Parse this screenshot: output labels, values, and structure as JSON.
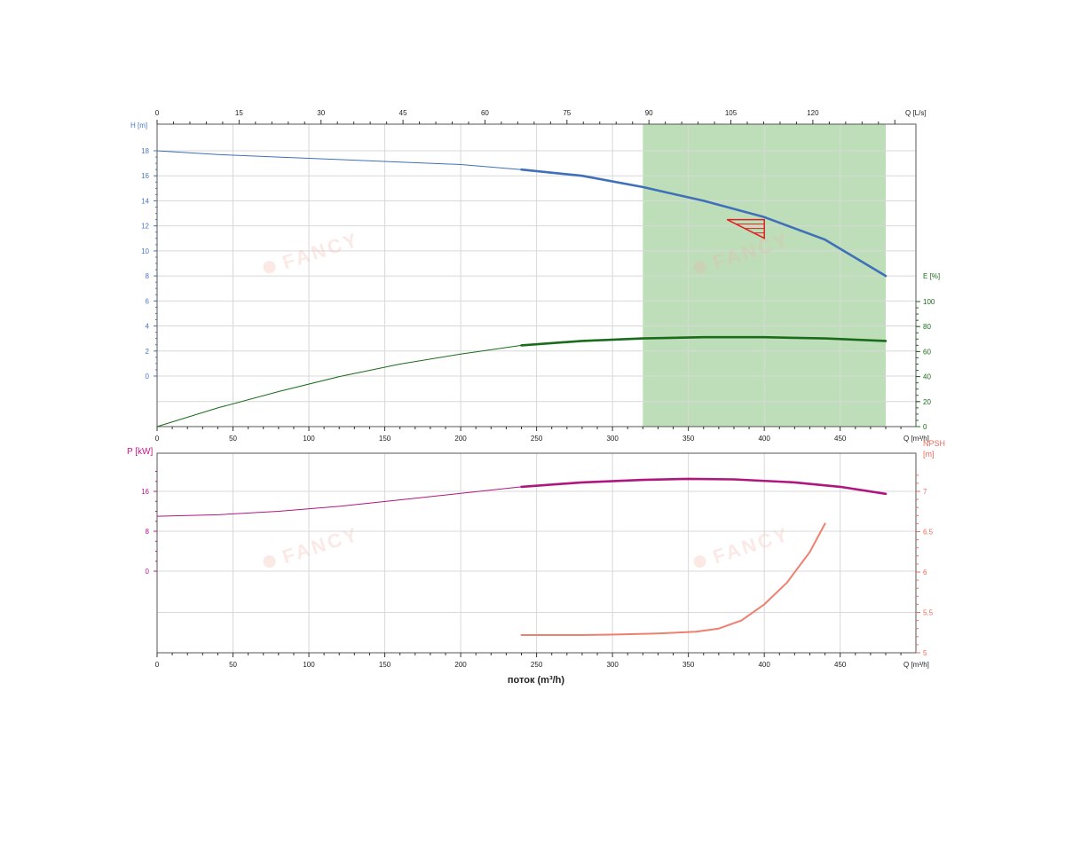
{
  "watermark": "FANCY",
  "xlabel_bottom": "поток (m³/h)",
  "chart_data": [
    {
      "type": "line",
      "x_unit": "Q [m³/h]",
      "x_top_unit": "Q [L/s]",
      "xlim": [
        0,
        500
      ],
      "x_ticks": [
        0,
        50,
        100,
        150,
        200,
        250,
        300,
        350,
        400,
        450
      ],
      "x_top_ticks": [
        0,
        15,
        30,
        45,
        60,
        75,
        90,
        105,
        120
      ],
      "left_axis": {
        "label": "H [m]",
        "ticks": [
          0,
          2,
          4,
          6,
          8,
          10,
          12,
          14,
          16,
          18
        ],
        "color": "#4a78c2"
      },
      "right_axis": {
        "label": "E [%]",
        "ticks": [
          0,
          20,
          40,
          60,
          80,
          100
        ],
        "color": "#1a6b1a"
      },
      "operating_range": {
        "x_min": 320,
        "x_max": 480,
        "color": "#b9dcb4"
      },
      "duty_point": {
        "q": 400,
        "h": 12.5
      },
      "series": [
        {
          "axis": "left",
          "color": "#3f70b9",
          "points": [
            [
              0,
              18
            ],
            [
              40,
              17.7
            ],
            [
              80,
              17.5
            ],
            [
              120,
              17.3
            ],
            [
              160,
              17.1
            ],
            [
              200,
              16.9
            ],
            [
              240,
              16.5
            ],
            [
              280,
              16.0
            ],
            [
              320,
              15.1
            ],
            [
              360,
              14.0
            ],
            [
              400,
              12.7
            ],
            [
              440,
              10.9
            ],
            [
              480,
              8.0
            ]
          ],
          "bold_from": 240
        },
        {
          "axis": "right",
          "color": "#1a6b1a",
          "points": [
            [
              0,
              0
            ],
            [
              40,
              15
            ],
            [
              80,
              28
            ],
            [
              120,
              40
            ],
            [
              160,
              50
            ],
            [
              200,
              58
            ],
            [
              240,
              65
            ],
            [
              280,
              68.5
            ],
            [
              320,
              70.5
            ],
            [
              360,
              71.5
            ],
            [
              400,
              71.5
            ],
            [
              440,
              70.5
            ],
            [
              480,
              68.5
            ]
          ],
          "bold_from": 240
        }
      ]
    },
    {
      "type": "line",
      "x_unit": "Q [m³/h]",
      "xlim": [
        0,
        500
      ],
      "x_ticks": [
        0,
        50,
        100,
        150,
        200,
        250,
        300,
        350,
        400,
        450
      ],
      "left_axis": {
        "label": "P [kW]",
        "ticks": [
          0,
          8,
          16
        ],
        "color": "#c0168c"
      },
      "right_axis": {
        "label": "NPSH",
        "label2": "[m]",
        "ticks": [
          5,
          5.5,
          6,
          6.5,
          7
        ],
        "color": "#ef6a5a"
      },
      "series": [
        {
          "axis": "left",
          "color": "#b0167f",
          "points": [
            [
              0,
              11
            ],
            [
              40,
              11.3
            ],
            [
              80,
              12
            ],
            [
              120,
              13
            ],
            [
              160,
              14.3
            ],
            [
              200,
              15.6
            ],
            [
              240,
              16.9
            ],
            [
              280,
              17.8
            ],
            [
              320,
              18.3
            ],
            [
              350,
              18.5
            ],
            [
              380,
              18.4
            ],
            [
              420,
              17.8
            ],
            [
              450,
              16.9
            ],
            [
              480,
              15.5
            ]
          ],
          "bold_from": 240
        },
        {
          "axis": "right",
          "color": "#ef7f6e",
          "points": [
            [
              240,
              5.22
            ],
            [
              280,
              5.22
            ],
            [
              300,
              5.225
            ],
            [
              330,
              5.24
            ],
            [
              355,
              5.26
            ],
            [
              370,
              5.3
            ],
            [
              385,
              5.4
            ],
            [
              400,
              5.6
            ],
            [
              415,
              5.87
            ],
            [
              430,
              6.25
            ],
            [
              440,
              6.6
            ]
          ]
        }
      ]
    }
  ]
}
